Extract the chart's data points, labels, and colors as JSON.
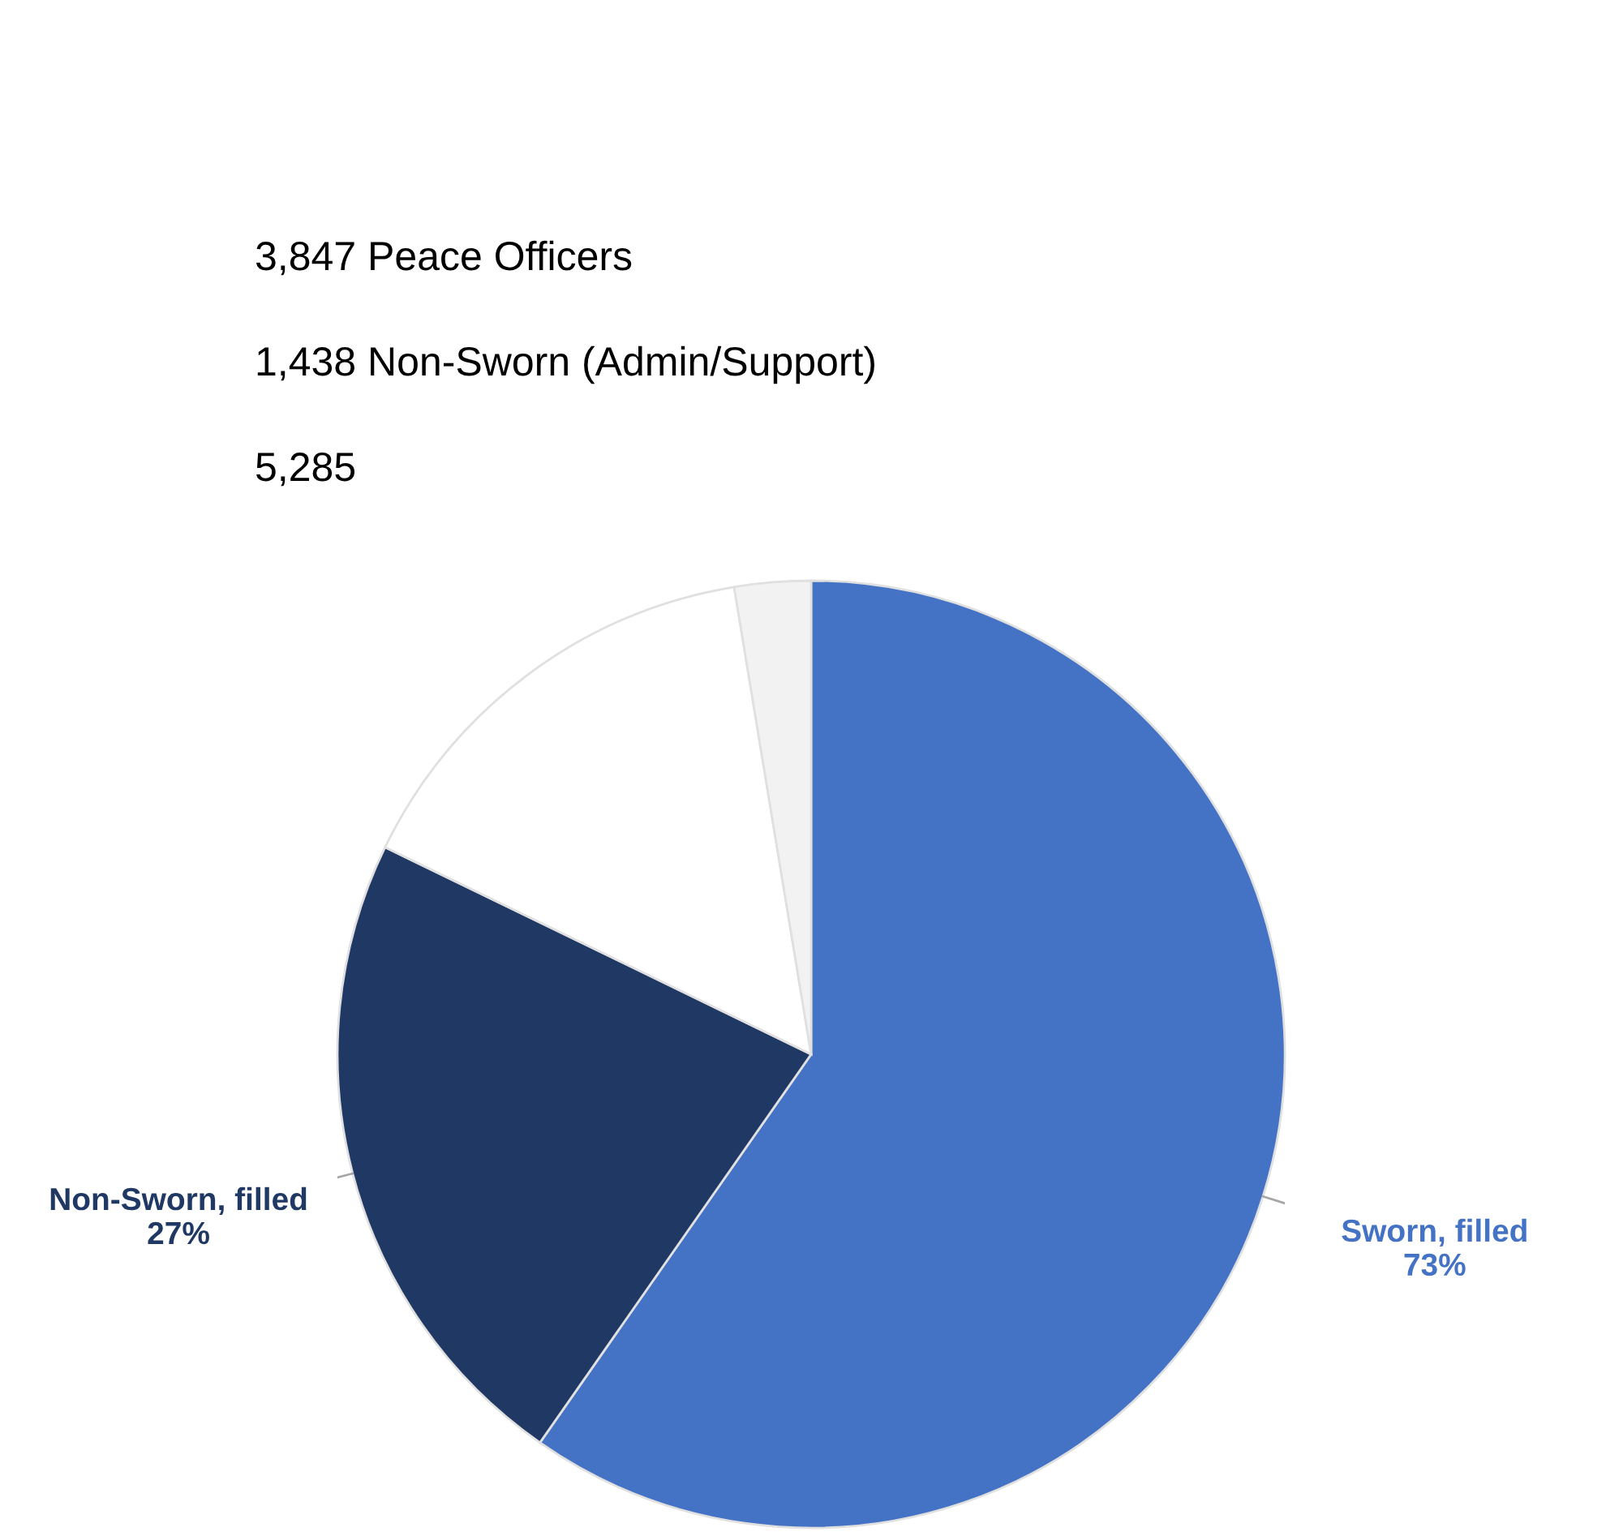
{
  "chart_data": {
    "type": "pie",
    "annotations": [
      "3,847 Peace Officers",
      "1,438 Non-Sworn (Admin/Support)",
      "5,285"
    ],
    "categories": [
      "Sworn, filled 73%",
      "Non-Sworn, filled 27%",
      null,
      null
    ],
    "values": [
      59.7,
      22.5,
      15.2,
      2.6
    ],
    "colors": [
      "#4472c4",
      "#203864",
      "#ffffff",
      "#f2f2f2"
    ],
    "legend": false
  }
}
